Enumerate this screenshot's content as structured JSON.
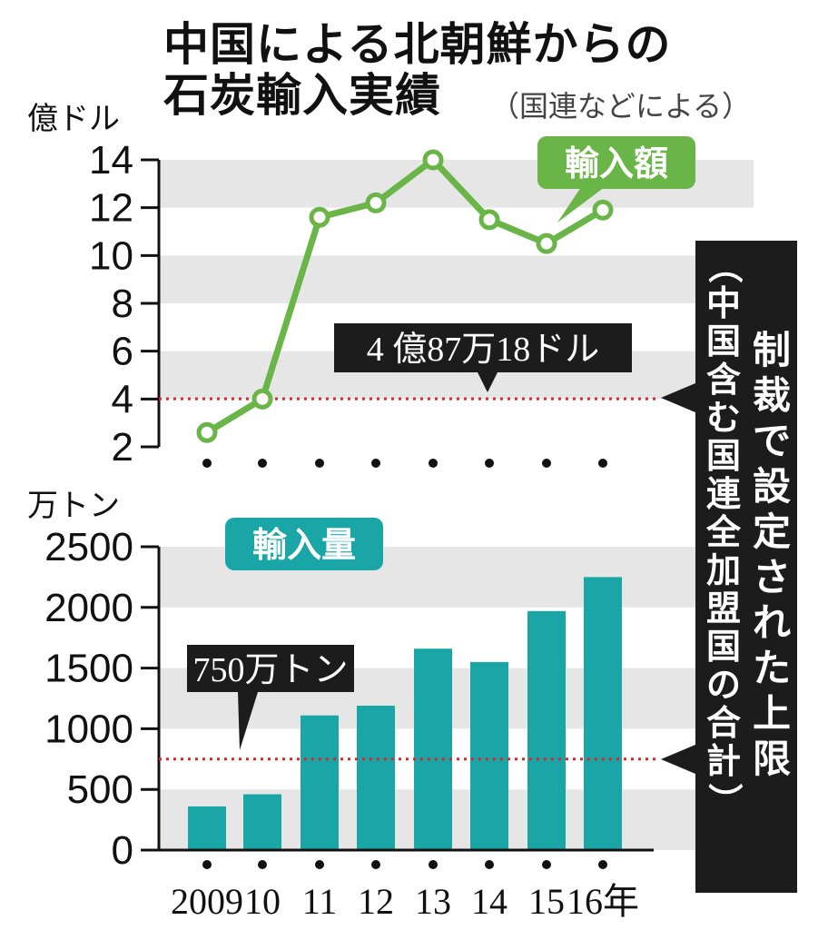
{
  "title": {
    "line1": "中国による北朝鮮からの",
    "line2": "石炭輸入実績",
    "subtitle": "（国連などによる）"
  },
  "colors": {
    "line": "#6ab547",
    "bar": "#1aa6a6",
    "grid_band": "#e6e6e6",
    "limit_line": "#d9262b",
    "callout": "#1c1c1c"
  },
  "sanction_note": {
    "main": "制裁で設定された上限",
    "sub": "（中国含む国連全加盟国の合計）"
  },
  "chart_data": [
    {
      "type": "line",
      "series_label": "輸入額",
      "y_unit": "億ドル",
      "ylim": [
        2,
        14
      ],
      "yticks": [
        "2",
        "4",
        "6",
        "8",
        "10",
        "12",
        "14"
      ],
      "x": [
        "2009",
        "10",
        "11",
        "12",
        "13",
        "14",
        "15",
        "16年"
      ],
      "values": [
        2.6,
        4.0,
        11.6,
        12.2,
        14.0,
        11.5,
        10.5,
        11.9
      ],
      "limit": {
        "value": 4.0087,
        "label": "4 億87万18ドル"
      },
      "grid": "horizontal bands"
    },
    {
      "type": "bar",
      "series_label": "輸入量",
      "y_unit": "万トン",
      "ylim": [
        0,
        2500
      ],
      "yticks": [
        "0",
        "500",
        "1000",
        "1500",
        "2000",
        "2500"
      ],
      "categories": [
        "2009",
        "10",
        "11",
        "12",
        "13",
        "14",
        "15",
        "16年"
      ],
      "values": [
        360,
        460,
        1110,
        1190,
        1660,
        1550,
        1970,
        2250
      ],
      "limit": {
        "value": 750,
        "label": "750万トン"
      },
      "grid": "horizontal bands"
    }
  ]
}
